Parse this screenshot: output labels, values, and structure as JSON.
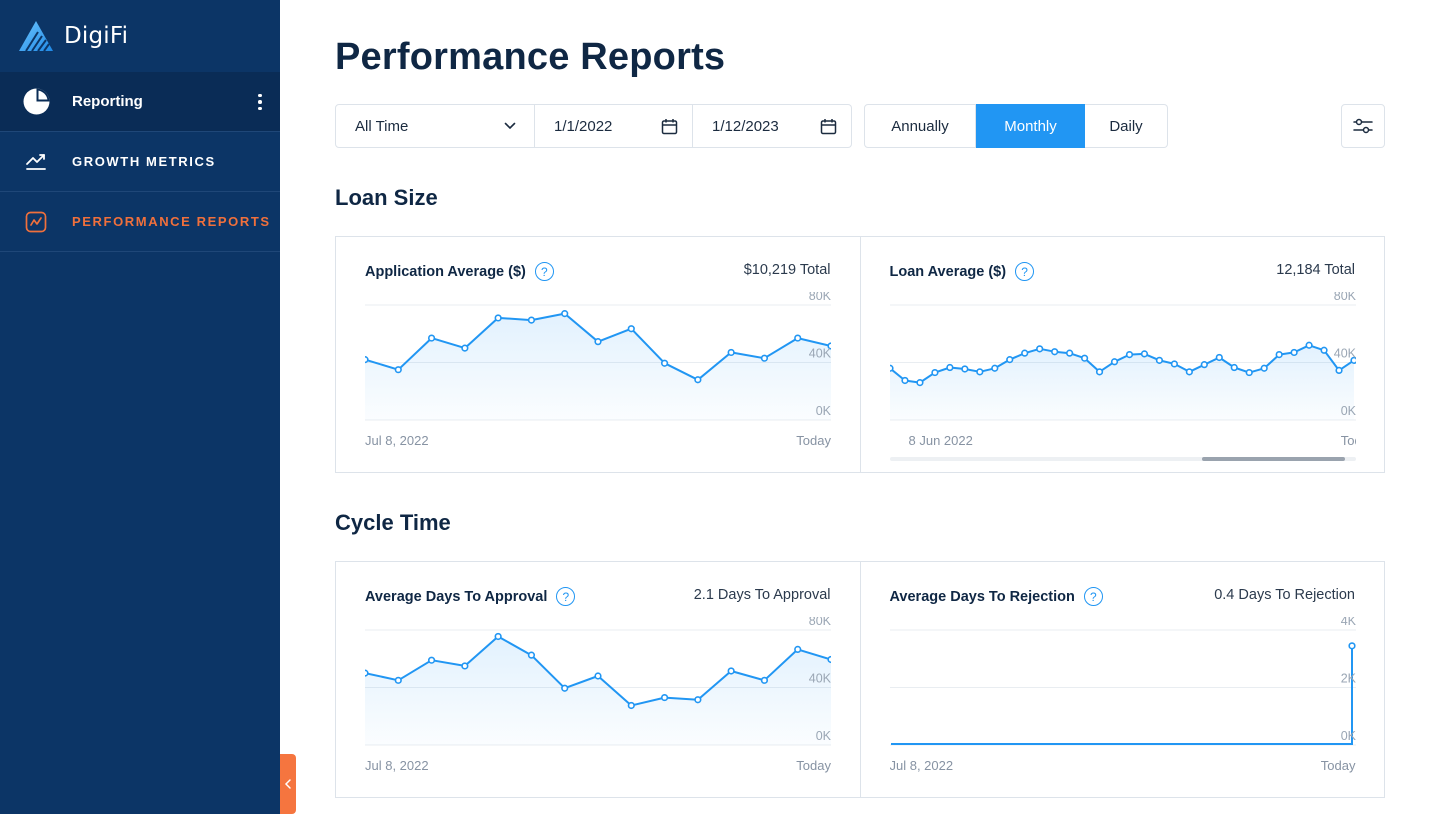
{
  "app": {
    "name": "DigiFi"
  },
  "sidebar": {
    "header": {
      "label": "Reporting"
    },
    "items": [
      {
        "label": "GROWTH METRICS",
        "icon": "trend-up-icon",
        "active": false
      },
      {
        "label": "PERFORMANCE REPORTS",
        "icon": "line-chart-icon",
        "active": true
      }
    ]
  },
  "page": {
    "title": "Performance Reports"
  },
  "filters": {
    "range": "All Time",
    "start_date": "1/1/2022",
    "end_date": "1/12/2023",
    "periods": [
      "Annually",
      "Monthly",
      "Daily"
    ],
    "selected_period": "Monthly"
  },
  "sections": [
    {
      "title": "Loan Size",
      "cards": [
        {
          "title": "Application Average ($)",
          "total": "$10,219 Total",
          "x_start": "Jul 8, 2022",
          "x_end": "Today",
          "scrollable": false
        },
        {
          "title": "Loan Average ($)",
          "total": "12,184 Total",
          "x_start": "8 Jun 2022",
          "x_end": "Today",
          "scrollable": true
        }
      ]
    },
    {
      "title": "Cycle Time",
      "cards": [
        {
          "title": "Average Days To Approval",
          "total": "2.1 Days To Approval",
          "x_start": "Jul 8, 2022",
          "x_end": "Today",
          "scrollable": false
        },
        {
          "title": "Average Days To Rejection",
          "total": "0.4 Days To Rejection",
          "x_start": "Jul 8, 2022",
          "x_end": "Today",
          "scrollable": false
        }
      ]
    }
  ],
  "colors": {
    "accent": "#2196f3",
    "sidebar": "#0c3566",
    "active_nav": "#f0703c"
  },
  "chart_data": [
    {
      "type": "area",
      "title": "Application Average ($)",
      "yticks": [
        "0K",
        "40K",
        "80K"
      ],
      "ylim": [
        0,
        80000
      ],
      "xlabels": [
        "Jul 8, 2022",
        "Today"
      ],
      "series": [
        {
          "values": [
            42000,
            35000,
            57000,
            50000,
            71000,
            69500,
            74000,
            54500,
            63500,
            39500,
            28000,
            47000,
            43000,
            57000,
            51500
          ]
        }
      ]
    },
    {
      "type": "area",
      "title": "Loan Average ($)",
      "yticks": [
        "0K",
        "40K",
        "80K"
      ],
      "ylim": [
        0,
        80000
      ],
      "xlabels": [
        "8 Jun 2022",
        "Today"
      ],
      "series": [
        {
          "values": [
            36000,
            27500,
            26000,
            33000,
            36500,
            35500,
            33500,
            36000,
            42000,
            46500,
            49500,
            47500,
            46500,
            43000,
            33500,
            40500,
            45500,
            46000,
            41500,
            39000,
            33500,
            38500,
            43500,
            36500,
            33000,
            36000,
            45500,
            47000,
            52000,
            48500,
            34500,
            41500
          ]
        }
      ]
    },
    {
      "type": "area",
      "title": "Average Days To Approval",
      "yticks": [
        "0K",
        "40K",
        "80K"
      ],
      "ylim": [
        0,
        80000
      ],
      "xlabels": [
        "Jul 8, 2022",
        "Today"
      ],
      "series": [
        {
          "values": [
            50000,
            45000,
            59000,
            55000,
            75500,
            62500,
            39500,
            48000,
            27500,
            33000,
            31500,
            51500,
            45000,
            66500,
            59500
          ]
        }
      ]
    },
    {
      "type": "line",
      "title": "Average Days To Rejection",
      "yticks": [
        "0K",
        "2K",
        "4K"
      ],
      "ylim": [
        0,
        4000
      ],
      "xlabels": [
        "Jul 8, 2022",
        "Today"
      ],
      "series": [
        {
          "values": [
            0,
            0,
            0,
            0,
            0,
            0,
            0,
            0,
            0,
            0,
            0,
            0,
            0,
            0,
            0,
            0,
            0,
            0,
            0,
            0,
            0,
            0,
            0,
            0,
            0,
            0,
            0,
            0,
            0,
            0,
            0,
            0,
            0,
            0,
            0,
            0,
            0,
            0,
            0,
            0,
            3450
          ]
        }
      ]
    }
  ]
}
